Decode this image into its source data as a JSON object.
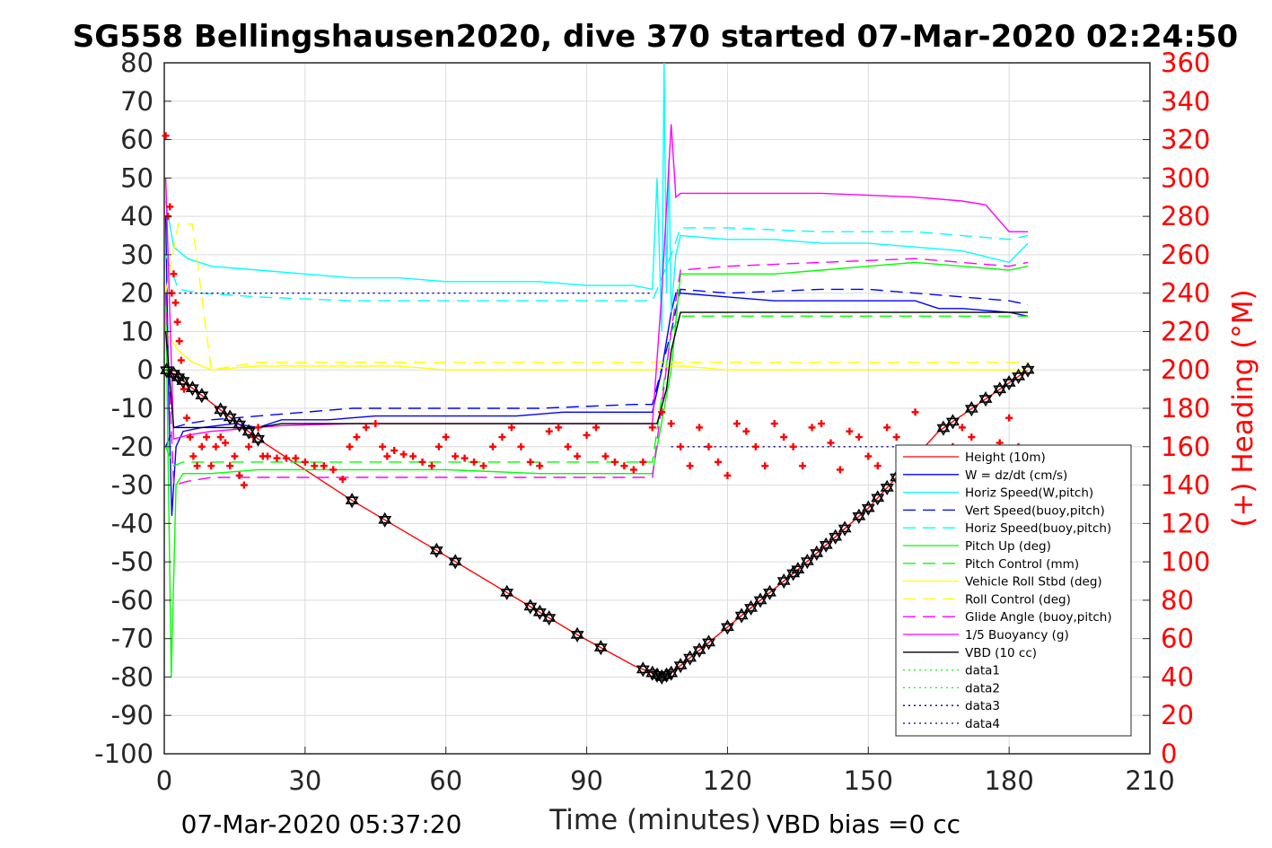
{
  "chart_data": {
    "type": "line",
    "title": "SG558 Bellingshausen2020, dive 370 started 07-Mar-2020 02:24:50",
    "xlabel": "Time (minutes)",
    "ylabel_right": "(+) Heading (°M)",
    "footer_left": "07-Mar-2020 05:37:20",
    "footer_right": "VBD bias =0 cc",
    "xlim": [
      0,
      210
    ],
    "ylim": [
      -100,
      80
    ],
    "ylim_right": [
      0,
      360
    ],
    "xticks": [
      0,
      30,
      60,
      90,
      120,
      150,
      180,
      210
    ],
    "yticks": [
      80,
      70,
      60,
      50,
      40,
      30,
      20,
      10,
      0,
      -10,
      -20,
      -30,
      -40,
      -50,
      -60,
      -70,
      -80,
      -90,
      -100
    ],
    "yticks_right": [
      360,
      340,
      320,
      300,
      280,
      260,
      240,
      220,
      200,
      180,
      160,
      140,
      120,
      100,
      80,
      60,
      40,
      20,
      0
    ],
    "grid": true,
    "legend_position": "bottom-right",
    "colors": {
      "axis": "#262626",
      "grid": "#dcdcdc",
      "right_axis": "#ff0000"
    },
    "series": [
      {
        "name": "Height (10m)",
        "color": "#ff0000",
        "style": "solid",
        "x": [
          0.3,
          2,
          20,
          40,
          58,
          73,
          88,
          100,
          104,
          106,
          108,
          120,
          135,
          150,
          165,
          184
        ],
        "y": [
          0,
          -1,
          -18,
          -34,
          -47,
          -58,
          -69,
          -77,
          -79,
          -80,
          -79,
          -67,
          -52,
          -36,
          -16,
          0
        ]
      },
      {
        "name": "W = dz/dt (cm/s)",
        "color": "#0000ff",
        "style": "solid",
        "x": [
          0.3,
          1,
          1.6,
          2.5,
          4,
          8,
          15,
          20,
          25,
          35,
          45,
          55,
          65,
          75,
          85,
          95,
          104,
          106,
          108,
          109,
          110,
          120,
          130,
          140,
          150,
          160,
          165,
          170,
          180,
          184
        ],
        "y": [
          40,
          -10,
          -38,
          -20,
          -16,
          -15,
          -14,
          -15,
          -13,
          -13,
          -12,
          -12,
          -12,
          -12,
          -11,
          -11,
          -11,
          0,
          15,
          20,
          20,
          19,
          18,
          18,
          18,
          18,
          16,
          16,
          15,
          14
        ]
      },
      {
        "name": "Horiz Speed(W,pitch)",
        "color": "#00ffff",
        "style": "solid",
        "x": [
          0.3,
          2,
          5,
          10,
          20,
          30,
          40,
          50,
          60,
          70,
          80,
          90,
          100,
          104,
          105,
          106,
          106.5,
          107,
          107.5,
          108,
          109,
          110,
          120,
          130,
          140,
          150,
          160,
          170,
          180,
          184
        ],
        "y": [
          44,
          32,
          29,
          27,
          26,
          25,
          24,
          24,
          23,
          23,
          23,
          22,
          22,
          21,
          50,
          10,
          80,
          20,
          55,
          15,
          30,
          35,
          34,
          34,
          33,
          33,
          32,
          31,
          28,
          33
        ]
      },
      {
        "name": "Vert Speed(buoy,pitch)",
        "color": "#0000ff",
        "style": "dashed",
        "x": [
          0.3,
          2,
          5,
          10,
          20,
          40,
          60,
          80,
          100,
          104,
          108,
          110,
          120,
          140,
          150,
          160,
          170,
          180,
          184
        ],
        "y": [
          -20,
          -15,
          -14,
          -13,
          -12,
          -10,
          -10,
          -10,
          -9,
          -9,
          10,
          21,
          20,
          21,
          21,
          20,
          19,
          18,
          17
        ]
      },
      {
        "name": "Horiz Speed(buoy,pitch)",
        "color": "#00ffff",
        "style": "dashed",
        "x": [
          0.3,
          3,
          8,
          20,
          40,
          60,
          80,
          100,
          104,
          108,
          110,
          120,
          140,
          160,
          180,
          184
        ],
        "y": [
          30,
          21,
          20,
          19,
          18,
          18,
          18,
          18,
          18,
          30,
          37,
          37,
          36,
          36,
          34,
          35
        ]
      },
      {
        "name": "Pitch Up (deg)",
        "color": "#00ff00",
        "style": "solid",
        "x": [
          0.3,
          1.5,
          2.5,
          4,
          10,
          20,
          40,
          60,
          80,
          100,
          104,
          108,
          110,
          120,
          130,
          140,
          150,
          160,
          170,
          180,
          184
        ],
        "y": [
          20,
          -80,
          -30,
          -27,
          -27,
          -26,
          -26,
          -26,
          -27,
          -27,
          -27,
          0,
          25,
          25,
          25,
          26,
          27,
          28,
          27,
          26,
          27
        ]
      },
      {
        "name": "Pitch Control (mm)",
        "color": "#00ff00",
        "style": "dashed",
        "x": [
          0.3,
          2,
          4,
          20,
          40,
          60,
          80,
          100,
          104,
          108,
          110,
          120,
          140,
          160,
          180,
          184
        ],
        "y": [
          -20,
          -25,
          -24,
          -24,
          -24,
          -24,
          -24,
          -24,
          -24,
          10,
          14,
          14,
          14,
          14,
          14,
          14
        ]
      },
      {
        "name": "Vehicle Roll Stbd (deg)",
        "color": "#ffff00",
        "style": "solid",
        "x": [
          0.3,
          3,
          6,
          10,
          20,
          30,
          40,
          50,
          60,
          70,
          80,
          90,
          100,
          104,
          108,
          110,
          120,
          130,
          140,
          150,
          160,
          170,
          180,
          184
        ],
        "y": [
          10,
          5,
          2,
          0,
          1,
          1,
          1,
          1,
          0,
          0,
          0,
          0,
          0,
          0,
          1,
          1,
          0,
          0,
          0,
          0,
          0,
          0,
          0,
          0
        ]
      },
      {
        "name": "Roll Control (deg)",
        "color": "#ffff00",
        "style": "dashed",
        "x": [
          0.3,
          3,
          6,
          10,
          20,
          30,
          40,
          50,
          60,
          70,
          80,
          90,
          100,
          104,
          108,
          110,
          120,
          130,
          140,
          150,
          160,
          170,
          180,
          184
        ],
        "y": [
          20,
          38,
          38,
          0,
          2,
          2,
          2,
          2,
          2,
          2,
          2,
          2,
          2,
          2,
          2,
          2,
          2,
          2,
          2,
          2,
          2,
          2,
          2,
          2
        ]
      },
      {
        "name": "Glide Angle (buoy,pitch)",
        "color": "#ff00ff",
        "style": "dashed",
        "x": [
          0.3,
          2,
          5,
          10,
          20,
          40,
          60,
          80,
          100,
          104,
          108,
          110,
          120,
          140,
          160,
          180,
          184
        ],
        "y": [
          20,
          -30,
          -29,
          -28,
          -28,
          -28,
          -28,
          -28,
          -28,
          -28,
          10,
          26,
          27,
          28,
          29,
          27,
          28
        ]
      },
      {
        "name": "1/5 Buoyancy (g)",
        "color": "#ff00ff",
        "style": "solid",
        "x": [
          0.3,
          2,
          5,
          10,
          15,
          20,
          25,
          40,
          60,
          80,
          100,
          104,
          106,
          108,
          109,
          110,
          120,
          140,
          160,
          170,
          175,
          180,
          184
        ],
        "y": [
          50,
          -18,
          -17,
          -16,
          -15.5,
          -15,
          -14.5,
          -14,
          -14,
          -14,
          -14,
          -14,
          20,
          64,
          45,
          46,
          46,
          46,
          45,
          44,
          43,
          36,
          36
        ]
      },
      {
        "name": "VBD (10 cc)",
        "color": "#000000",
        "style": "solid",
        "x": [
          0.3,
          2,
          10,
          20,
          25,
          40,
          60,
          80,
          100,
          104,
          105,
          107,
          108,
          110,
          120,
          140,
          160,
          180,
          184
        ],
        "y": [
          10,
          -15,
          -15,
          -15,
          -14,
          -14,
          -14,
          -14,
          -14,
          -14,
          -14,
          -5,
          5,
          15,
          15,
          15,
          15,
          15,
          15
        ]
      },
      {
        "name": "data1",
        "color": "#00ff00",
        "style": "dotted",
        "x": [],
        "y": []
      },
      {
        "name": "data2",
        "color": "#00ff00",
        "style": "dotted",
        "x": [],
        "y": []
      },
      {
        "name": "data3",
        "color": "#000080",
        "style": "dotted",
        "x": [
          2,
          104
        ],
        "y": [
          20,
          20
        ]
      },
      {
        "name": "data4",
        "color": "#000080",
        "style": "dotted",
        "x": [
          108,
          184
        ],
        "y": [
          -20,
          -20
        ]
      }
    ],
    "heading": {
      "axis": "right",
      "color": "#ff0000",
      "marker": "+",
      "x": [
        0.3,
        0.8,
        1.2,
        1.6,
        2.0,
        2.4,
        2.8,
        3.2,
        3.6,
        4.2,
        4.8,
        5.5,
        6.2,
        7,
        8,
        9,
        10,
        11,
        12,
        13,
        14,
        15,
        16,
        17,
        18,
        19,
        20,
        21,
        22,
        24,
        26,
        28,
        30,
        32,
        34,
        36,
        38,
        39.5,
        41,
        43,
        45,
        46.5,
        47.5,
        49,
        51,
        53,
        55,
        57,
        58.5,
        60,
        62,
        64,
        66,
        68,
        70,
        72,
        74,
        76,
        78,
        80,
        82,
        84,
        86,
        88,
        90,
        92,
        94,
        96,
        98,
        100,
        102,
        104,
        106,
        108,
        110,
        112,
        114,
        116,
        118,
        120,
        122,
        124,
        126,
        128,
        130,
        132,
        134,
        136,
        138,
        140,
        142,
        144,
        146,
        148,
        150,
        152,
        154,
        156,
        158,
        160,
        162,
        164,
        166,
        168,
        170,
        172,
        174,
        176,
        178,
        180,
        182,
        184
      ],
      "y": [
        322,
        280,
        285,
        240,
        250,
        235,
        225,
        215,
        205,
        190,
        175,
        165,
        155,
        150,
        160,
        165,
        150,
        160,
        165,
        162,
        150,
        155,
        145,
        140,
        160,
        165,
        170,
        155,
        155,
        154,
        154,
        154,
        152,
        150,
        150,
        148,
        143,
        160,
        165,
        170,
        172,
        160,
        155,
        158,
        156,
        155,
        152,
        150,
        160,
        165,
        155,
        154,
        152,
        150,
        160,
        165,
        170,
        160,
        152,
        150,
        168,
        170,
        160,
        155,
        166,
        170,
        155,
        152,
        150,
        148,
        152,
        170,
        178,
        172,
        160,
        150,
        170,
        160,
        152,
        145,
        172,
        168,
        160,
        150,
        172,
        165,
        160,
        150,
        170,
        172,
        162,
        148,
        168,
        165,
        155,
        150,
        170,
        165,
        158,
        178,
        155,
        150,
        148,
        160,
        170,
        165,
        155,
        150,
        162,
        175,
        160,
        158
      ]
    },
    "height_markers": {
      "marker": "hexagram",
      "color": "#000000",
      "x": [
        0.5,
        2,
        3,
        4,
        6,
        8,
        12,
        14,
        16,
        18,
        20,
        40,
        47,
        58,
        62,
        73,
        78,
        80,
        82,
        88,
        93,
        102,
        104,
        105,
        106,
        107,
        108,
        110,
        112,
        114,
        116,
        120,
        123,
        125,
        127,
        129,
        132,
        134,
        135,
        137,
        139,
        141,
        143,
        145,
        148,
        150,
        152,
        154,
        156,
        158,
        166,
        168,
        172,
        175,
        178,
        180,
        182,
        184
      ]
    }
  }
}
